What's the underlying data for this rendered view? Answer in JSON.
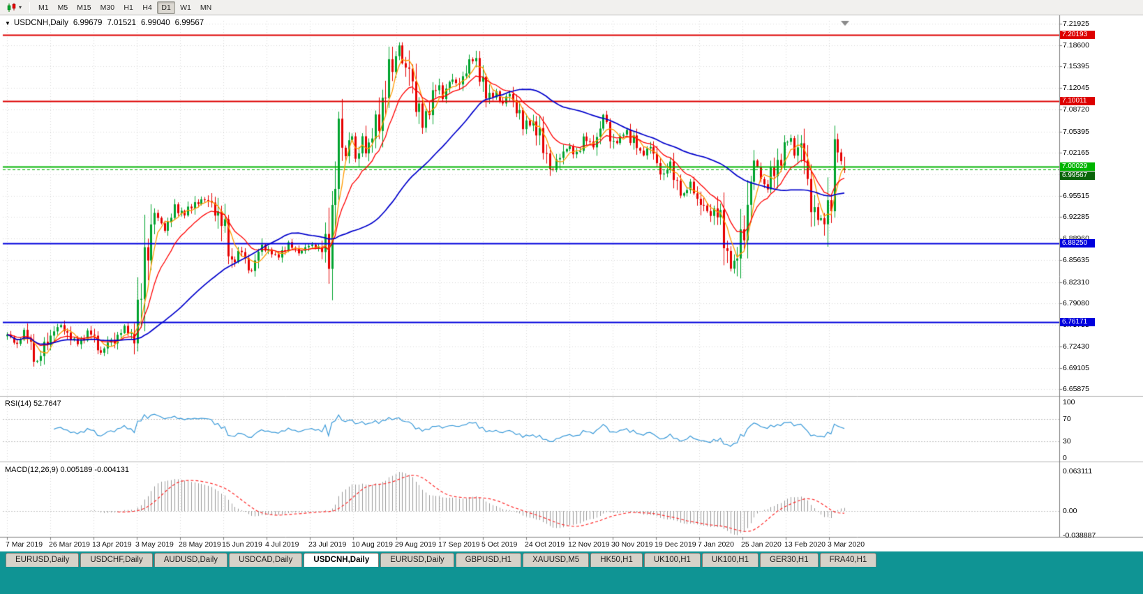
{
  "colors": {
    "workspace_teal": "#0f9494",
    "toolbar_bg": "#f1f0ee",
    "candle_up": "#00a32e",
    "candle_down": "#e60000",
    "ma_fast": "#ff9a00",
    "ma_mid": "#ff0000",
    "ma_slow": "#0000cc",
    "rsi_line": "#3a9ad9",
    "macd_hist": "#9a9a9a",
    "macd_signal": "#ff2a2a",
    "grid": "#d8d8d8",
    "axis": "#7d7d7d",
    "hline_red": "#dd0000",
    "hline_green": "#00b400",
    "hline_blue": "#0000dd",
    "current_price_badge": "#0a640a"
  },
  "toolbar": {
    "chart_type_icon": "candlestick-chart-icon",
    "dropdown_icon": "chevron-down-icon",
    "timeframes": [
      "M1",
      "M5",
      "M15",
      "M30",
      "H1",
      "H4",
      "D1",
      "W1",
      "MN"
    ],
    "active_timeframe": "D1"
  },
  "chart": {
    "symbol_period": "USDCNH,Daily",
    "open": "6.99679",
    "high": "7.01521",
    "low": "6.99040",
    "close": "6.99567"
  },
  "price_scale": {
    "ticks": [
      "7.21925",
      "7.18600",
      "7.15395",
      "7.12045",
      "7.08720",
      "7.05395",
      "7.02165",
      "6.98840",
      "6.95515",
      "6.92285",
      "6.88960",
      "6.85635",
      "6.82310",
      "6.79080",
      "6.75755",
      "6.72430",
      "6.69105",
      "6.65875"
    ]
  },
  "hlines": [
    {
      "label": "7.20193",
      "price": 7.20193,
      "color_key": "hline_red"
    },
    {
      "label": "7.10011",
      "price": 7.10011,
      "color_key": "hline_red"
    },
    {
      "label": "7.00029",
      "price": 7.00029,
      "color_key": "hline_green"
    },
    {
      "label": "6.99567",
      "price": 6.99567,
      "color_key": "hline_green",
      "style": "dashed",
      "badge_key": "current_price_badge",
      "role": "current-price"
    },
    {
      "label": "6.88250",
      "price": 6.8825,
      "color_key": "hline_blue"
    },
    {
      "label": "6.76171",
      "price": 6.76171,
      "color_key": "hline_blue"
    }
  ],
  "rsi": {
    "label": "RSI(14) 52.7647",
    "scale": [
      "100",
      "70",
      "30",
      "0"
    ],
    "levels": [
      70,
      30
    ]
  },
  "macd": {
    "label": "MACD(12,26,9) 0.005189 -0.004131",
    "scale": [
      "0.063111",
      "0.00",
      "-0.038887"
    ]
  },
  "x_axis": {
    "labels": [
      "7 Mar 2019",
      "26 Mar 2019",
      "13 Apr 2019",
      "3 May 2019",
      "28 May 2019",
      "15 Jun 2019",
      "4 Jul 2019",
      "23 Jul 2019",
      "10 Aug 2019",
      "29 Aug 2019",
      "17 Sep 2019",
      "5 Oct 2019",
      "24 Oct 2019",
      "12 Nov 2019",
      "30 Nov 2019",
      "19 Dec 2019",
      "7 Jan 2020",
      "25 Jan 2020",
      "13 Feb 2020",
      "3 Mar 2020"
    ]
  },
  "tabs": {
    "items": [
      "EURUSD,Daily",
      "USDCHF,Daily",
      "AUDUSD,Daily",
      "USDCAD,Daily",
      "USDCNH,Daily",
      "EURUSD,Daily",
      "GBPUSD,H1",
      "XAUUSD,M5",
      "HK50,H1",
      "UK100,H1",
      "UK100,H1",
      "GER30,H1",
      "FRA40,H1"
    ],
    "active_index": 4
  },
  "chart_data": {
    "type": "candlestick",
    "symbol": "USDCNH",
    "period": "Daily",
    "last_candle": [
      6.99679,
      7.01521,
      6.9904,
      6.99567
    ],
    "num_candles": 251,
    "visible_range": {
      "price_top": 7.2235,
      "price_bottom": 6.6505
    },
    "horizontal_levels": [
      7.20193,
      7.10011,
      7.00029,
      6.8825,
      6.76171
    ],
    "indicators": {
      "ma_periods": [
        5,
        13,
        45
      ],
      "rsi_period": 14,
      "macd_params": [
        12,
        26,
        9
      ]
    },
    "price_path": [
      [
        0.0,
        6.74
      ],
      [
        0.012,
        6.727
      ],
      [
        0.022,
        6.748
      ],
      [
        0.03,
        6.722
      ],
      [
        0.036,
        6.7
      ],
      [
        0.048,
        6.737
      ],
      [
        0.065,
        6.756
      ],
      [
        0.082,
        6.728
      ],
      [
        0.098,
        6.748
      ],
      [
        0.112,
        6.714
      ],
      [
        0.128,
        6.738
      ],
      [
        0.14,
        6.753
      ],
      [
        0.15,
        6.74
      ],
      [
        0.158,
        6.766
      ],
      [
        0.164,
        6.845
      ],
      [
        0.17,
        6.905
      ],
      [
        0.176,
        6.928
      ],
      [
        0.188,
        6.906
      ],
      [
        0.2,
        6.933
      ],
      [
        0.214,
        6.928
      ],
      [
        0.23,
        6.952
      ],
      [
        0.246,
        6.943
      ],
      [
        0.258,
        6.902
      ],
      [
        0.268,
        6.854
      ],
      [
        0.28,
        6.872
      ],
      [
        0.291,
        6.837
      ],
      [
        0.304,
        6.878
      ],
      [
        0.32,
        6.862
      ],
      [
        0.336,
        6.881
      ],
      [
        0.35,
        6.868
      ],
      [
        0.364,
        6.88
      ],
      [
        0.377,
        6.872
      ],
      [
        0.385,
        6.892
      ],
      [
        0.391,
        6.98
      ],
      [
        0.397,
        7.046
      ],
      [
        0.404,
        7.014
      ],
      [
        0.41,
        7.062
      ],
      [
        0.417,
        7.0
      ],
      [
        0.424,
        7.048
      ],
      [
        0.431,
        7.028
      ],
      [
        0.439,
        7.06
      ],
      [
        0.447,
        7.09
      ],
      [
        0.455,
        7.126
      ],
      [
        0.462,
        7.158
      ],
      [
        0.468,
        7.19
      ],
      [
        0.474,
        7.142
      ],
      [
        0.481,
        7.16
      ],
      [
        0.489,
        7.098
      ],
      [
        0.496,
        7.06
      ],
      [
        0.504,
        7.092
      ],
      [
        0.511,
        7.122
      ],
      [
        0.52,
        7.108
      ],
      [
        0.529,
        7.138
      ],
      [
        0.538,
        7.122
      ],
      [
        0.548,
        7.15
      ],
      [
        0.557,
        7.163
      ],
      [
        0.565,
        7.148
      ],
      [
        0.574,
        7.1
      ],
      [
        0.583,
        7.12
      ],
      [
        0.591,
        7.092
      ],
      [
        0.6,
        7.112
      ],
      [
        0.609,
        7.086
      ],
      [
        0.616,
        7.06
      ],
      [
        0.625,
        7.076
      ],
      [
        0.634,
        7.048
      ],
      [
        0.643,
        7.026
      ],
      [
        0.65,
        6.986
      ],
      [
        0.659,
        7.016
      ],
      [
        0.669,
        7.032
      ],
      [
        0.679,
        7.018
      ],
      [
        0.689,
        7.046
      ],
      [
        0.698,
        7.028
      ],
      [
        0.706,
        7.05
      ],
      [
        0.713,
        7.082
      ],
      [
        0.72,
        7.046
      ],
      [
        0.729,
        7.038
      ],
      [
        0.739,
        7.056
      ],
      [
        0.749,
        7.034
      ],
      [
        0.758,
        7.016
      ],
      [
        0.767,
        7.036
      ],
      [
        0.775,
        7.006
      ],
      [
        0.783,
        6.988
      ],
      [
        0.79,
        7.004
      ],
      [
        0.799,
        6.972
      ],
      [
        0.808,
        6.956
      ],
      [
        0.817,
        6.976
      ],
      [
        0.827,
        6.946
      ],
      [
        0.837,
        6.928
      ],
      [
        0.846,
        6.934
      ],
      [
        0.854,
        6.896
      ],
      [
        0.861,
        6.86
      ],
      [
        0.867,
        6.844
      ],
      [
        0.873,
        6.872
      ],
      [
        0.879,
        6.914
      ],
      [
        0.886,
        6.958
      ],
      [
        0.893,
        7.008
      ],
      [
        0.9,
        6.984
      ],
      [
        0.907,
        6.962
      ],
      [
        0.914,
        6.996
      ],
      [
        0.921,
        7.012
      ],
      [
        0.928,
        7.03
      ],
      [
        0.935,
        7.046
      ],
      [
        0.941,
        7.018
      ],
      [
        0.947,
        7.034
      ],
      [
        0.953,
        6.99
      ],
      [
        0.96,
        6.952
      ],
      [
        0.967,
        6.924
      ],
      [
        0.973,
        6.916
      ],
      [
        0.979,
        6.942
      ],
      [
        0.984,
        6.954
      ],
      [
        0.989,
        7.038
      ],
      [
        0.994,
        7.01
      ],
      [
        1.0,
        6.996
      ]
    ]
  }
}
